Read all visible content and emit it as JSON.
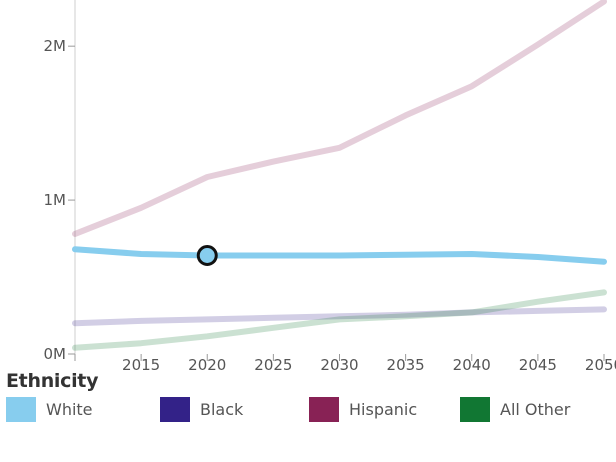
{
  "legend": {
    "title": "Ethnicity",
    "items": [
      {
        "label": "White",
        "color": "#87cdee"
      },
      {
        "label": "Black",
        "color": "#332288"
      },
      {
        "label": "Hispanic",
        "color": "#882255"
      },
      {
        "label": "All Other",
        "color": "#117733"
      }
    ]
  },
  "chart_data": {
    "type": "line",
    "x": [
      2010,
      2015,
      2020,
      2025,
      2030,
      2035,
      2040,
      2045,
      2050
    ],
    "x_tick_labels": [
      "2015",
      "2020",
      "2025",
      "2030",
      "2035",
      "2040",
      "2045",
      "2050"
    ],
    "y_tick_labels": [
      "0M",
      "1M",
      "2M"
    ],
    "xlim": [
      2010,
      2050
    ],
    "ylim": [
      0,
      2300000
    ],
    "grid": false,
    "legend_position": "bottom",
    "series": [
      {
        "name": "White",
        "color": "#87cdee",
        "highlighted": true,
        "values": [
          680000,
          650000,
          640000,
          640000,
          640000,
          645000,
          650000,
          630000,
          600000
        ]
      },
      {
        "name": "Black",
        "color": "#332288",
        "highlighted": false,
        "values": [
          200000,
          215000,
          225000,
          235000,
          245000,
          255000,
          270000,
          280000,
          290000
        ]
      },
      {
        "name": "Hispanic",
        "color": "#882255",
        "highlighted": false,
        "values": [
          780000,
          950000,
          1150000,
          1250000,
          1340000,
          1550000,
          1740000,
          2010000,
          2290000
        ]
      },
      {
        "name": "All Other",
        "color": "#117733",
        "highlighted": false,
        "values": [
          40000,
          70000,
          115000,
          170000,
          225000,
          245000,
          270000,
          340000,
          400000
        ]
      }
    ],
    "highlight_point": {
      "series": "White",
      "x": 2020,
      "y": 640000
    }
  }
}
